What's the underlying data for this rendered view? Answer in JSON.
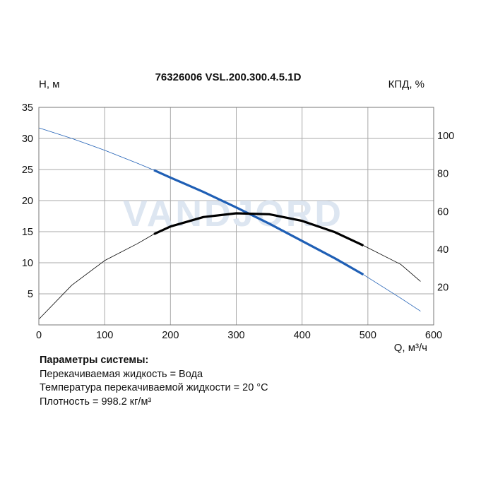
{
  "chart_data": {
    "type": "line",
    "title": "76326006 VSL.200.300.4.5.1D",
    "ylabel": "H, м",
    "y2label": "КПД, %",
    "xlabel": "Q, м³/ч",
    "watermark": "VANDJORD",
    "xlim": [
      0,
      600
    ],
    "ylim": [
      0,
      35
    ],
    "y2lim": [
      0,
      115
    ],
    "x_ticks": [
      "0",
      "100",
      "200",
      "300",
      "400",
      "500",
      "600"
    ],
    "y_ticks": [
      "5",
      "10",
      "15",
      "20",
      "25",
      "30",
      "35"
    ],
    "y2_ticks": [
      "20",
      "40",
      "60",
      "80",
      "100"
    ],
    "grid": true,
    "colors": {
      "head": "#1f5fb5",
      "efficiency": "#000000",
      "grid": "#a9a9a9",
      "watermark": "#dde6f1"
    },
    "series": [
      {
        "axis": "left",
        "operating_range": [
          175,
          493
        ],
        "x": [
          0,
          50,
          100,
          150,
          175,
          200,
          250,
          300,
          350,
          400,
          450,
          493,
          550,
          580
        ],
        "y": [
          31.7,
          30.0,
          28.1,
          26.0,
          24.9,
          23.7,
          21.4,
          18.9,
          16.3,
          13.5,
          10.7,
          8.1,
          4.3,
          2.2
        ]
      },
      {
        "axis": "right",
        "operating_range": [
          175,
          493
        ],
        "x": [
          0,
          50,
          100,
          150,
          175,
          200,
          250,
          300,
          350,
          400,
          450,
          493,
          550,
          580
        ],
        "y": [
          3,
          21,
          34,
          43,
          48,
          52,
          57,
          59,
          58.5,
          55,
          49,
          42,
          32,
          23
        ]
      }
    ]
  },
  "params": {
    "title": "Параметры системы:",
    "lines": [
      "Перекачиваемая жидкость = Вода",
      "Температура перекачиваемой жидкости = 20 °C",
      "Плотность = 998.2 кг/м³"
    ]
  }
}
